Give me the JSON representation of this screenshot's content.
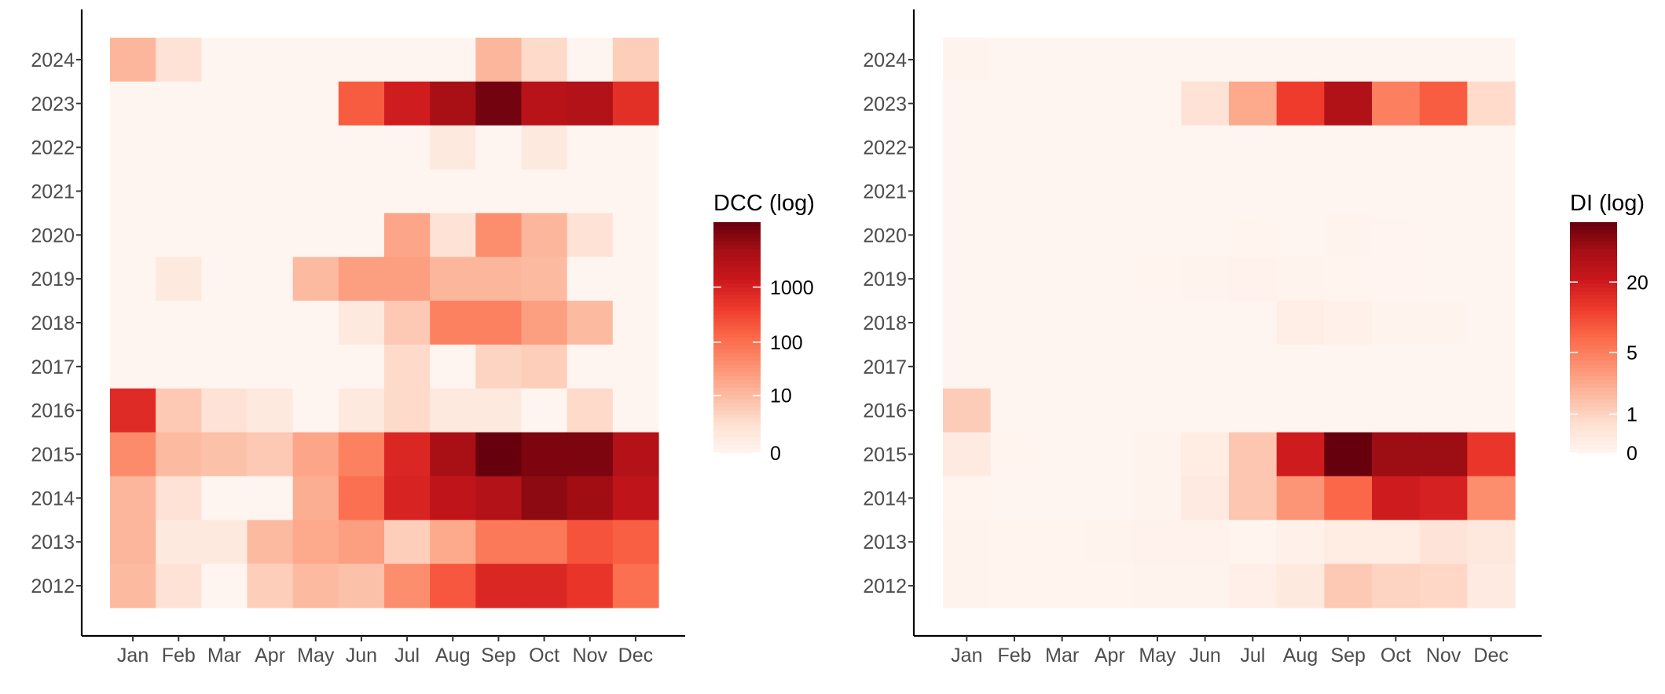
{
  "chart_data": [
    {
      "type": "heatmap",
      "x_categories": [
        "Jan",
        "Feb",
        "Mar",
        "Apr",
        "May",
        "Jun",
        "Jul",
        "Aug",
        "Sep",
        "Oct",
        "Nov",
        "Dec"
      ],
      "y_categories": [
        "2024",
        "2023",
        "2022",
        "2021",
        "2020",
        "2019",
        "2018",
        "2017",
        "2016",
        "2015",
        "2014",
        "2013",
        "2012"
      ],
      "value_scale": "log",
      "values": [
        [
          12,
          2,
          0,
          0,
          0,
          0,
          0,
          0,
          12,
          3,
          0,
          5
        ],
        [
          0,
          0,
          0,
          0,
          0,
          180,
          1200,
          4000,
          12000,
          2500,
          3000,
          600
        ],
        [
          0,
          0,
          0,
          0,
          0,
          0,
          0,
          1,
          0,
          1,
          0,
          0
        ],
        [
          0,
          0,
          0,
          0,
          0,
          0,
          0,
          0,
          0,
          0,
          0,
          0
        ],
        [
          0,
          0,
          0,
          0,
          0,
          0,
          20,
          2,
          40,
          12,
          2,
          0
        ],
        [
          0,
          1,
          0,
          0,
          10,
          25,
          25,
          12,
          12,
          10,
          0,
          0
        ],
        [
          0,
          0,
          0,
          0,
          0,
          1,
          6,
          60,
          60,
          25,
          10,
          0
        ],
        [
          0,
          0,
          0,
          0,
          0,
          0,
          3,
          0,
          4,
          5,
          0,
          0
        ],
        [
          700,
          6,
          2,
          1,
          0,
          1,
          3,
          1,
          1,
          0,
          3,
          0
        ],
        [
          45,
          10,
          8,
          6,
          20,
          60,
          800,
          4000,
          15000,
          10000,
          10000,
          3000
        ],
        [
          12,
          2,
          0,
          0,
          15,
          100,
          900,
          2000,
          3000,
          7000,
          5000,
          2000
        ],
        [
          12,
          1,
          1,
          10,
          18,
          25,
          5,
          18,
          80,
          80,
          220,
          160
        ],
        [
          10,
          2,
          0,
          5,
          10,
          8,
          40,
          200,
          800,
          800,
          500,
          100
        ]
      ],
      "legend": {
        "title": "DCC (log)",
        "tick_labels": [
          "0",
          "10",
          "100",
          "1000"
        ],
        "tick_values": [
          0,
          10,
          100,
          1000
        ],
        "max": 15000,
        "colors": [
          "#fff5f0",
          "#fee0d2",
          "#fcbba1",
          "#fc9272",
          "#fb6a4a",
          "#ef3b2c",
          "#cb181d",
          "#a50f15",
          "#67000d"
        ]
      }
    },
    {
      "type": "heatmap",
      "x_categories": [
        "Jan",
        "Feb",
        "Mar",
        "Apr",
        "May",
        "Jun",
        "Jul",
        "Aug",
        "Sep",
        "Oct",
        "Nov",
        "Dec"
      ],
      "y_categories": [
        "2024",
        "2023",
        "2022",
        "2021",
        "2020",
        "2019",
        "2018",
        "2017",
        "2016",
        "2015",
        "2014",
        "2013",
        "2012"
      ],
      "value_scale": "log",
      "values": [
        [
          0.05,
          0,
          0,
          0,
          0,
          0,
          0,
          0,
          0,
          0,
          0,
          0
        ],
        [
          0,
          0,
          0,
          0,
          0,
          0.6,
          2.5,
          12,
          30,
          5,
          8,
          0.8
        ],
        [
          0,
          0,
          0,
          0,
          0,
          0,
          0,
          0,
          0,
          0,
          0,
          0
        ],
        [
          0,
          0,
          0,
          0,
          0,
          0,
          0,
          0,
          0,
          0,
          0,
          0
        ],
        [
          0,
          0,
          0,
          0,
          0,
          0,
          0.03,
          0,
          0.06,
          0.02,
          0,
          0
        ],
        [
          0,
          0,
          0,
          0,
          0.03,
          0.05,
          0.07,
          0.04,
          0.03,
          0.02,
          0,
          0
        ],
        [
          0,
          0,
          0,
          0,
          0,
          0,
          0,
          0.2,
          0.12,
          0.06,
          0.04,
          0
        ],
        [
          0,
          0,
          0,
          0,
          0,
          0,
          0,
          0,
          0,
          0,
          0,
          0
        ],
        [
          1.2,
          0,
          0,
          0,
          0,
          0,
          0,
          0,
          0,
          0,
          0,
          0
        ],
        [
          0.3,
          0.03,
          0,
          0,
          0.05,
          0.25,
          1.4,
          20,
          60,
          38,
          38,
          13
        ],
        [
          0.03,
          0,
          0,
          0,
          0.05,
          0.3,
          1.4,
          3.5,
          7,
          20,
          18,
          4
        ],
        [
          0.05,
          0.03,
          0.03,
          0.05,
          0.07,
          0.08,
          0.03,
          0.12,
          0.25,
          0.25,
          0.5,
          0.4
        ],
        [
          0.05,
          0.03,
          0.03,
          0.03,
          0.04,
          0.05,
          0.15,
          0.35,
          1.3,
          1,
          0.9,
          0.3
        ]
      ],
      "legend": {
        "title": "DI (log)",
        "tick_labels": [
          "0",
          "1",
          "5",
          "20"
        ],
        "tick_values": [
          0,
          1,
          5,
          20
        ],
        "max": 60,
        "colors": [
          "#fff5f0",
          "#fee0d2",
          "#fcbba1",
          "#fc9272",
          "#fb6a4a",
          "#ef3b2c",
          "#cb181d",
          "#a50f15",
          "#67000d"
        ]
      }
    }
  ]
}
